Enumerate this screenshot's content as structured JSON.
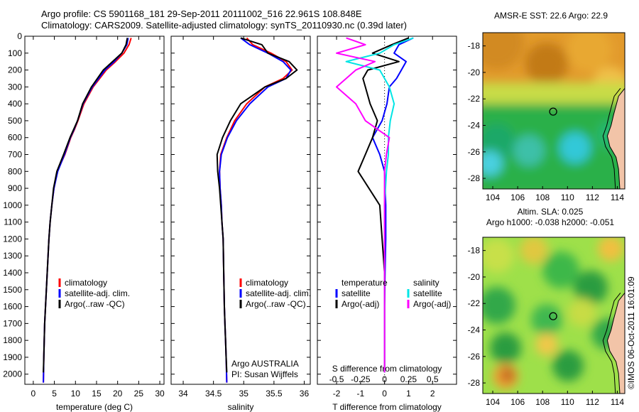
{
  "header": {
    "line1": "Argo profile: CS 5901168_181 29-Sep-2011 20111002_516 22.961S 108.848E",
    "line2": "Climatology: CARS2009. Satellite-adjusted climatology: synTS_20110930.nc (0.39d later)"
  },
  "colors": {
    "climatology": "#ff0000",
    "satellite": "#0000ff",
    "argo": "#000000",
    "satellite_s": "#00e5e5",
    "argo_s": "#ff00ff"
  },
  "chart_data": [
    {
      "type": "line",
      "panel": "temperature",
      "xlabel": "temperature (deg C)",
      "xlim": [
        -2,
        31
      ],
      "xticks": [
        0,
        5,
        10,
        15,
        20,
        25,
        30
      ],
      "ylim": [
        0,
        2060
      ],
      "yticks": [
        0,
        100,
        200,
        300,
        400,
        500,
        600,
        700,
        800,
        900,
        1000,
        1100,
        1200,
        1300,
        1400,
        1500,
        1600,
        1700,
        1800,
        1900,
        2000
      ],
      "legend": [
        "climatology",
        "satellite-adj. clim.",
        "Argo(..raw -QC)"
      ],
      "series": [
        {
          "name": "climatology",
          "color": "#ff0000",
          "x": [
            23.2,
            22.7,
            21.5,
            19.5,
            17.3,
            14.2,
            12.0,
            10.6,
            9.8,
            8.9,
            7.5,
            5.7,
            4.9,
            4.4,
            4.0,
            3.7,
            3.3,
            3.1,
            2.9,
            2.7,
            2.6,
            2.5,
            2.4
          ],
          "y": [
            10,
            50,
            100,
            150,
            200,
            300,
            400,
            500,
            550,
            600,
            700,
            800,
            900,
            1000,
            1100,
            1200,
            1400,
            1500,
            1600,
            1700,
            1800,
            1900,
            2050
          ]
        },
        {
          "name": "satellite-adj. clim.",
          "color": "#0000ff",
          "x": [
            22.5,
            22.2,
            21.0,
            19.2,
            17.0,
            14.0,
            11.8,
            10.5,
            9.7,
            8.8,
            7.4,
            5.8,
            4.9,
            4.4,
            4.0,
            3.7,
            3.3,
            3.1,
            2.9,
            2.7,
            2.6,
            2.5,
            2.4
          ],
          "y": [
            10,
            50,
            100,
            150,
            200,
            300,
            400,
            500,
            550,
            600,
            700,
            800,
            900,
            1000,
            1100,
            1200,
            1400,
            1500,
            1600,
            1700,
            1800,
            1900,
            2050
          ]
        },
        {
          "name": "Argo(..raw -QC)",
          "color": "#000000",
          "x": [
            22.3,
            22.0,
            21.0,
            18.8,
            16.6,
            13.8,
            11.7,
            10.5,
            9.6,
            8.7,
            7.2,
            5.6,
            4.8,
            4.4,
            4.0,
            3.7,
            3.3,
            3.1,
            2.9,
            2.7,
            2.6,
            2.5,
            2.4
          ],
          "y": [
            10,
            50,
            100,
            150,
            200,
            300,
            400,
            500,
            550,
            600,
            700,
            800,
            900,
            1000,
            1100,
            1200,
            1400,
            1500,
            1600,
            1700,
            1800,
            1900,
            1990
          ]
        }
      ]
    },
    {
      "type": "line",
      "panel": "salinity",
      "xlabel": "salinity",
      "xlim": [
        33.8,
        36.1
      ],
      "xticks": [
        34,
        34.5,
        35,
        35.5,
        36
      ],
      "ylim": [
        0,
        2060
      ],
      "legend": [
        "climatology",
        "satellite-adj. clim.",
        "Argo(..raw -QC)"
      ],
      "annotation": [
        "Argo AUSTRALIA",
        "PI: Susan Wijffels"
      ],
      "series": [
        {
          "name": "climatology",
          "color": "#ff0000",
          "x": [
            35.05,
            35.15,
            35.45,
            35.7,
            35.8,
            35.65,
            35.35,
            35.05,
            34.85,
            34.72,
            34.62,
            34.6,
            34.61,
            34.63,
            34.64,
            34.66,
            34.67,
            34.68,
            34.69,
            34.7,
            34.71,
            34.72
          ],
          "y": [
            10,
            50,
            100,
            150,
            200,
            250,
            300,
            400,
            500,
            600,
            700,
            800,
            900,
            1000,
            1100,
            1200,
            1400,
            1600,
            1700,
            1800,
            1900,
            2050
          ]
        },
        {
          "name": "satellite-adj. clim.",
          "color": "#0000ff",
          "x": [
            34.95,
            35.1,
            35.4,
            35.65,
            35.78,
            35.7,
            35.4,
            35.1,
            34.88,
            34.73,
            34.63,
            34.6,
            34.61,
            34.63,
            34.64,
            34.66,
            34.67,
            34.68,
            34.69,
            34.7,
            34.71,
            34.72
          ],
          "y": [
            10,
            50,
            100,
            150,
            200,
            250,
            300,
            400,
            500,
            600,
            700,
            800,
            900,
            1000,
            1100,
            1200,
            1400,
            1600,
            1700,
            1800,
            1900,
            2050
          ]
        },
        {
          "name": "Argo(..raw -QC)",
          "color": "#000000",
          "x": [
            34.95,
            35.3,
            35.4,
            35.75,
            35.88,
            35.7,
            35.35,
            34.95,
            34.78,
            34.65,
            34.56,
            34.57,
            34.6,
            34.62,
            34.64,
            34.66,
            34.67,
            34.68,
            34.69,
            34.7,
            34.71,
            34.72
          ],
          "y": [
            10,
            50,
            100,
            150,
            200,
            250,
            300,
            400,
            500,
            600,
            700,
            800,
            900,
            1000,
            1100,
            1200,
            1400,
            1600,
            1700,
            1800,
            1900,
            1990
          ]
        }
      ]
    },
    {
      "type": "line",
      "panel": "differences",
      "xlabel": "T difference from climatology",
      "xlabel_top": "S difference from climatology",
      "xlim": [
        -2.8,
        3
      ],
      "xticks": [
        -2,
        -1,
        0,
        1,
        2
      ],
      "xticks_s_labels": [
        "-0.5",
        "-0.25",
        "0",
        "0.25",
        "0.5"
      ],
      "ylim": [
        0,
        2060
      ],
      "legend_t": {
        "title": "temperature",
        "items": [
          "satellite",
          "Argo(-adj)"
        ]
      },
      "legend_s": {
        "title": "salinity",
        "items": [
          "satellite",
          "Argo(-adj)"
        ]
      },
      "series": [
        {
          "name": "temperature satellite",
          "color": "#0000ff",
          "x": [
            1.2,
            0.6,
            0.4,
            0.9,
            0.7,
            0.5,
            0.2,
            0.1,
            -0.1,
            -0.5,
            -0.2,
            0.0,
            0.05,
            0.05,
            0.02,
            0.0,
            0.0
          ],
          "y": [
            10,
            50,
            100,
            150,
            200,
            250,
            300,
            400,
            500,
            600,
            700,
            800,
            1000,
            1200,
            1400,
            1600,
            1990
          ]
        },
        {
          "name": "temperature Argo(-adj)",
          "color": "#000000",
          "x": [
            1.0,
            0.3,
            -0.5,
            0.6,
            -0.7,
            -0.9,
            -0.8,
            -0.6,
            -0.3,
            -0.5,
            -0.8,
            -1.1,
            -0.2,
            -0.1,
            0.0,
            0.0,
            0.0
          ],
          "y": [
            10,
            50,
            100,
            150,
            200,
            250,
            300,
            400,
            500,
            600,
            700,
            800,
            1000,
            1200,
            1400,
            1600,
            1990
          ]
        },
        {
          "name": "salinity satellite",
          "color": "#00e5e5",
          "x": [
            0.3,
            0.1,
            -0.05,
            -0.4,
            -0.05,
            0.05,
            0.1,
            0.06,
            0.04,
            0.04,
            0.02,
            0.0,
            0.0,
            0.0
          ],
          "y": [
            10,
            50,
            100,
            150,
            200,
            300,
            400,
            500,
            600,
            700,
            800,
            1000,
            1400,
            1990
          ]
        },
        {
          "name": "salinity Argo(-adj)",
          "color": "#ff00ff",
          "x": [
            -0.4,
            -0.2,
            -0.5,
            -0.1,
            -0.3,
            -0.5,
            -0.3,
            -0.2,
            0.05,
            0.02,
            0.0,
            0.0,
            0.0,
            0.0
          ],
          "y": [
            10,
            50,
            100,
            150,
            200,
            300,
            400,
            500,
            600,
            700,
            800,
            1000,
            1400,
            1990
          ]
        }
      ]
    },
    {
      "type": "heatmap",
      "panel": "sst-map",
      "title": "AMSR-E SST: 22.6 Argo: 22.9",
      "xlim": [
        103.2,
        114.6
      ],
      "ylim": [
        -28.8,
        -17
      ],
      "xticks": [
        104,
        106,
        108,
        110,
        112,
        114
      ],
      "yticks": [
        -18,
        -20,
        -22,
        -24,
        -26,
        -28
      ],
      "marker": {
        "x": 108.848,
        "y": -22.961
      }
    },
    {
      "type": "heatmap",
      "panel": "sla-map",
      "title": "Altim. SLA: 0.025",
      "subtitle": "Argo h1000: -0.038 h2000: -0.051",
      "xlim": [
        103.2,
        114.6
      ],
      "ylim": [
        -28.8,
        -17
      ],
      "xticks": [
        104,
        106,
        108,
        110,
        112,
        114
      ],
      "yticks": [
        -18,
        -20,
        -22,
        -24,
        -26,
        -28
      ],
      "marker": {
        "x": 108.848,
        "y": -22.961
      }
    }
  ],
  "credit": "©IMOS 06-Oct-2011 16:01:09"
}
